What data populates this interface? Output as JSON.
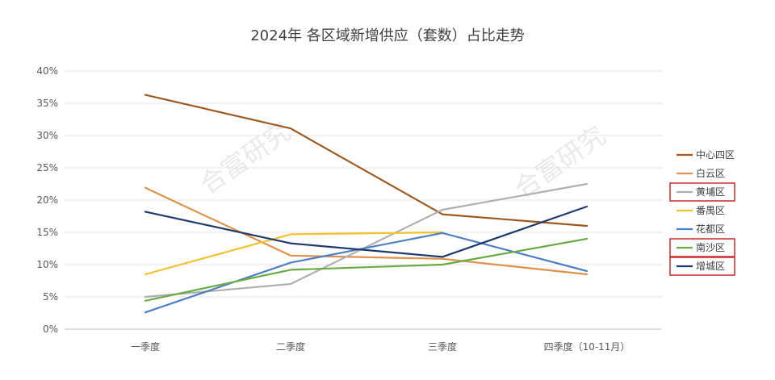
{
  "chart_data": {
    "type": "line",
    "title": "2024年 各区域新增供应（套数）占比走势",
    "categories": [
      "一季度",
      "二季度",
      "三季度",
      "四季度（10-11月）"
    ],
    "ylim": [
      0,
      40
    ],
    "yticks": [
      "0%",
      "5%",
      "10%",
      "15%",
      "20%",
      "25%",
      "30%",
      "35%",
      "40%"
    ],
    "unit": "%",
    "grid": true,
    "legend_position": "right",
    "series": [
      {
        "name": "中心四区",
        "color": "#9c5a22",
        "values": [
          36.3,
          31.1,
          17.8,
          16.0
        ],
        "highlighted": false
      },
      {
        "name": "白云区",
        "color": "#e0914a",
        "values": [
          21.9,
          11.4,
          10.9,
          8.5
        ],
        "highlighted": false
      },
      {
        "name": "黄埔区",
        "color": "#b0b0b0",
        "values": [
          5.0,
          7.0,
          18.5,
          22.5
        ],
        "highlighted": true
      },
      {
        "name": "番禺区",
        "color": "#f2c12e",
        "values": [
          8.5,
          14.7,
          15.0,
          null
        ],
        "highlighted": false
      },
      {
        "name": "花都区",
        "color": "#4d7fc4",
        "values": [
          2.6,
          10.3,
          14.9,
          9.0
        ],
        "highlighted": false
      },
      {
        "name": "南沙区",
        "color": "#6aab45",
        "values": [
          4.4,
          9.2,
          10.0,
          14.0
        ],
        "highlighted": true
      },
      {
        "name": "增城区",
        "color": "#1f3b6e",
        "values": [
          18.2,
          13.3,
          11.2,
          19.0
        ],
        "highlighted": true
      }
    ],
    "highlight_color": "#cc2a2a"
  },
  "watermark": "合富研究"
}
